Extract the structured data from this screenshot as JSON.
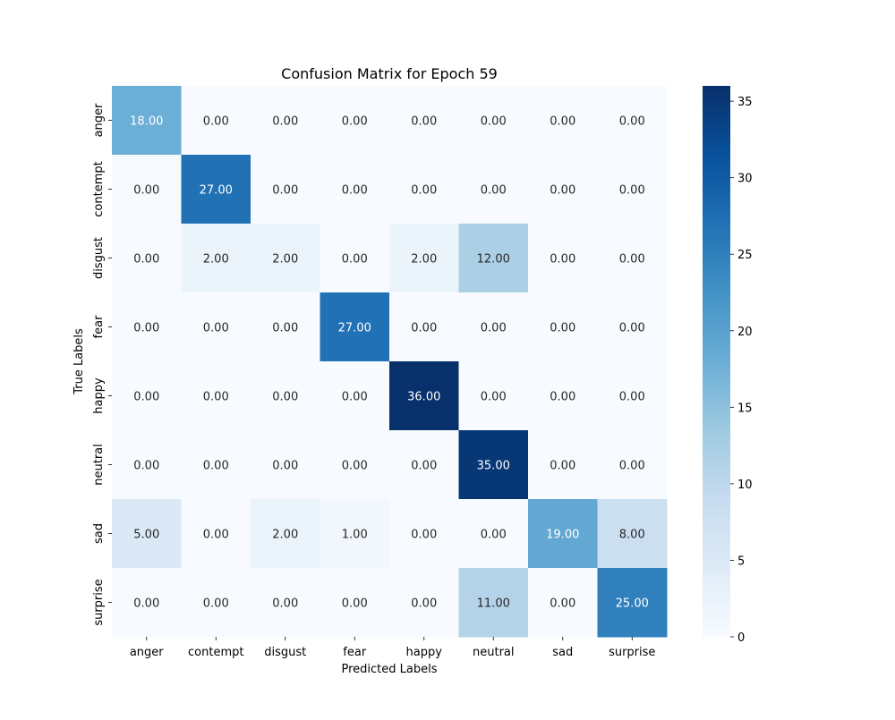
{
  "chart_data": {
    "type": "heatmap",
    "title": "Confusion Matrix for Epoch 59",
    "xlabel": "Predicted Labels",
    "ylabel": "True Labels",
    "x_categories": [
      "anger",
      "contempt",
      "disgust",
      "fear",
      "happy",
      "neutral",
      "sad",
      "surprise"
    ],
    "y_categories": [
      "anger",
      "contempt",
      "disgust",
      "fear",
      "happy",
      "neutral",
      "sad",
      "surprise"
    ],
    "values": [
      [
        18,
        0,
        0,
        0,
        0,
        0,
        0,
        0
      ],
      [
        0,
        27,
        0,
        0,
        0,
        0,
        0,
        0
      ],
      [
        0,
        2,
        2,
        0,
        2,
        12,
        0,
        0
      ],
      [
        0,
        0,
        0,
        27,
        0,
        0,
        0,
        0
      ],
      [
        0,
        0,
        0,
        0,
        36,
        0,
        0,
        0
      ],
      [
        0,
        0,
        0,
        0,
        0,
        35,
        0,
        0
      ],
      [
        5,
        0,
        2,
        1,
        0,
        0,
        19,
        8
      ],
      [
        0,
        0,
        0,
        0,
        0,
        11,
        0,
        25
      ]
    ],
    "value_format": "2 decimals",
    "colormap": "Blues",
    "colorbar": {
      "range": [
        0,
        36
      ],
      "ticks": [
        0,
        5,
        10,
        15,
        20,
        25,
        30,
        35
      ]
    }
  },
  "colors": {
    "cmap_low": "#f7fbff",
    "cmap_mid1": "#deebf7",
    "cmap_mid2": "#c6dbef",
    "cmap_mid3": "#9ecae1",
    "cmap_mid4": "#6baed6",
    "cmap_mid5": "#4292c6",
    "cmap_mid6": "#2171b5",
    "cmap_mid7": "#08519c",
    "cmap_high": "#08306b",
    "text_dark": "#262626",
    "text_light": "#ffffff"
  }
}
